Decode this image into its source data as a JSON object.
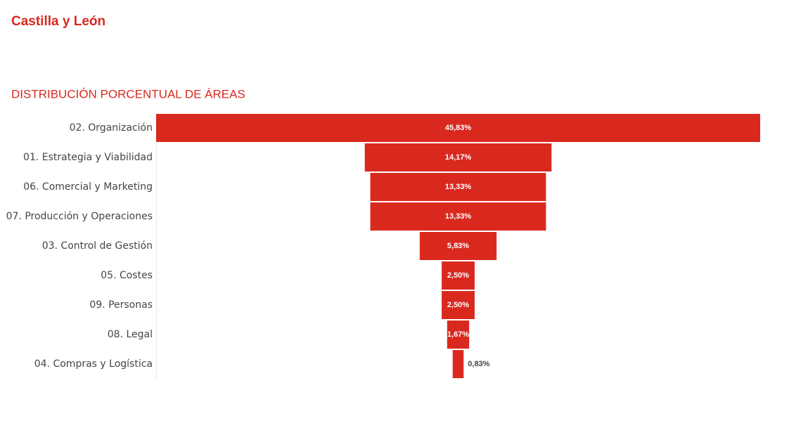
{
  "chart_data": {
    "type": "funnel",
    "title": "Castilla y León",
    "subtitle": "DISTRIBUCIÓN PORCENTUAL DE ÁREAS",
    "categories": [
      "02. Organización",
      "01. Estrategia y Viabilidad",
      "06. Comercial y Marketing",
      "07. Producción y Operaciones",
      "03. Control de Gestión",
      "05. Costes",
      "09. Personas",
      "08. Legal",
      "04. Compras y Logística"
    ],
    "values": [
      45.83,
      14.17,
      13.33,
      13.33,
      5.83,
      2.5,
      2.5,
      1.67,
      0.83
    ],
    "value_labels": [
      "45,83%",
      "14,17%",
      "13,33%",
      "13,33%",
      "5,83%",
      "2,50%",
      "2,50%",
      "1,67%",
      "0,83%"
    ],
    "color": "#d9291f"
  }
}
